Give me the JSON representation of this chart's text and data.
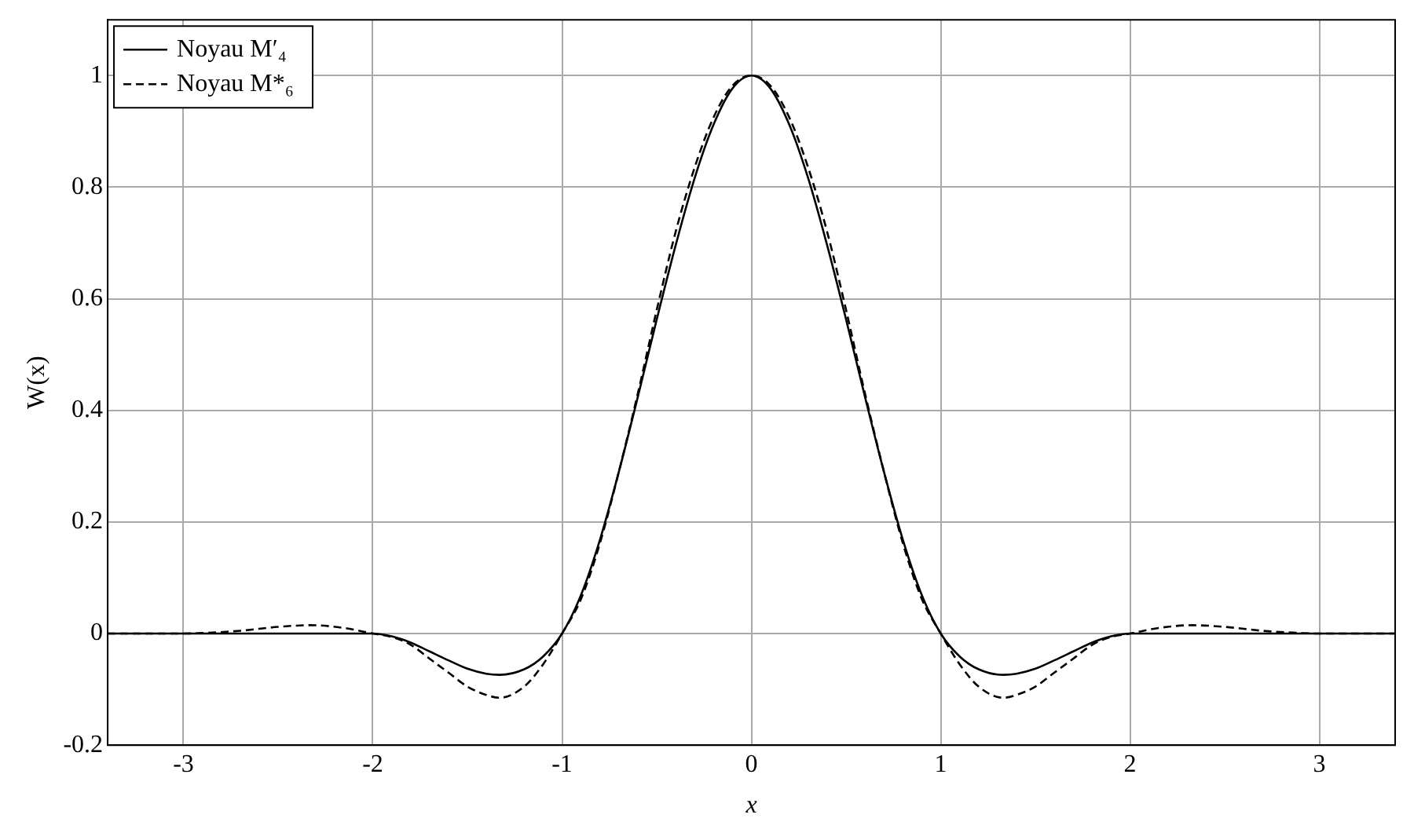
{
  "chart_data": {
    "type": "line",
    "xlabel": "x",
    "ylabel": "W(x)",
    "xlim": [
      -3.4,
      3.4
    ],
    "ylim": [
      -0.2,
      1.1
    ],
    "xticks": [
      -3,
      -2,
      -1,
      0,
      1,
      2,
      3
    ],
    "yticks": [
      -0.2,
      0,
      0.2,
      0.4,
      0.6,
      0.8,
      1
    ],
    "grid": true,
    "legend": "top left",
    "marker": "none",
    "series": [
      {
        "name": "Noyau M′₄",
        "color": "#000000",
        "line_style": "solid",
        "x": [
          -3.4,
          -2,
          -1.9,
          -1.8,
          -1.7,
          -1.6,
          -1.5,
          -1.4,
          -1.33,
          -1.2,
          -1.1,
          -1,
          -0.9,
          -0.8,
          -0.7,
          -0.6,
          -0.5,
          -0.4,
          -0.3,
          -0.2,
          -0.1,
          0,
          0.1,
          0.2,
          0.3,
          0.4,
          0.5,
          0.6,
          0.7,
          0.8,
          0.9,
          1,
          1.1,
          1.2,
          1.33,
          1.4,
          1.5,
          1.6,
          1.7,
          1.8,
          1.9,
          2,
          3.4
        ],
        "values": [
          0,
          0,
          -0.005,
          -0.016,
          -0.032,
          -0.048,
          -0.063,
          -0.072,
          -0.074,
          -0.064,
          -0.041,
          0,
          0.069,
          0.168,
          0.29,
          0.424,
          0.563,
          0.696,
          0.816,
          0.912,
          0.977,
          1,
          0.977,
          0.912,
          0.816,
          0.696,
          0.563,
          0.424,
          0.29,
          0.168,
          0.069,
          0,
          -0.041,
          -0.064,
          -0.074,
          -0.072,
          -0.063,
          -0.048,
          -0.032,
          -0.016,
          -0.005,
          0,
          0
        ]
      },
      {
        "name": "Noyau M*₆",
        "color": "#000000",
        "line_style": "dashed",
        "x": [
          -3.4,
          -3,
          -2.9,
          -2.7,
          -2.5,
          -2.33,
          -2.15,
          -2,
          -1.9,
          -1.8,
          -1.7,
          -1.6,
          -1.5,
          -1.4,
          -1.33,
          -1.2,
          -1.1,
          -1,
          -0.9,
          -0.8,
          -0.7,
          -0.6,
          -0.5,
          -0.4,
          -0.3,
          -0.2,
          -0.1,
          0,
          0.1,
          0.2,
          0.3,
          0.4,
          0.5,
          0.6,
          0.7,
          0.8,
          0.9,
          1,
          1.1,
          1.2,
          1.33,
          1.4,
          1.5,
          1.6,
          1.7,
          1.8,
          1.9,
          2,
          2.15,
          2.33,
          2.5,
          2.7,
          2.9,
          3,
          3.4
        ],
        "values": [
          0,
          0,
          0.001,
          0.005,
          0.012,
          0.015,
          0.01,
          0,
          -0.006,
          -0.02,
          -0.045,
          -0.07,
          -0.095,
          -0.11,
          -0.115,
          -0.095,
          -0.055,
          0,
          0.062,
          0.162,
          0.29,
          0.43,
          0.58,
          0.72,
          0.835,
          0.925,
          0.982,
          1,
          0.982,
          0.925,
          0.835,
          0.72,
          0.58,
          0.43,
          0.29,
          0.162,
          0.062,
          0,
          -0.055,
          -0.095,
          -0.115,
          -0.11,
          -0.095,
          -0.07,
          -0.045,
          -0.02,
          -0.006,
          0,
          0.01,
          0.015,
          0.012,
          0.005,
          0.001,
          0,
          0
        ]
      }
    ]
  }
}
